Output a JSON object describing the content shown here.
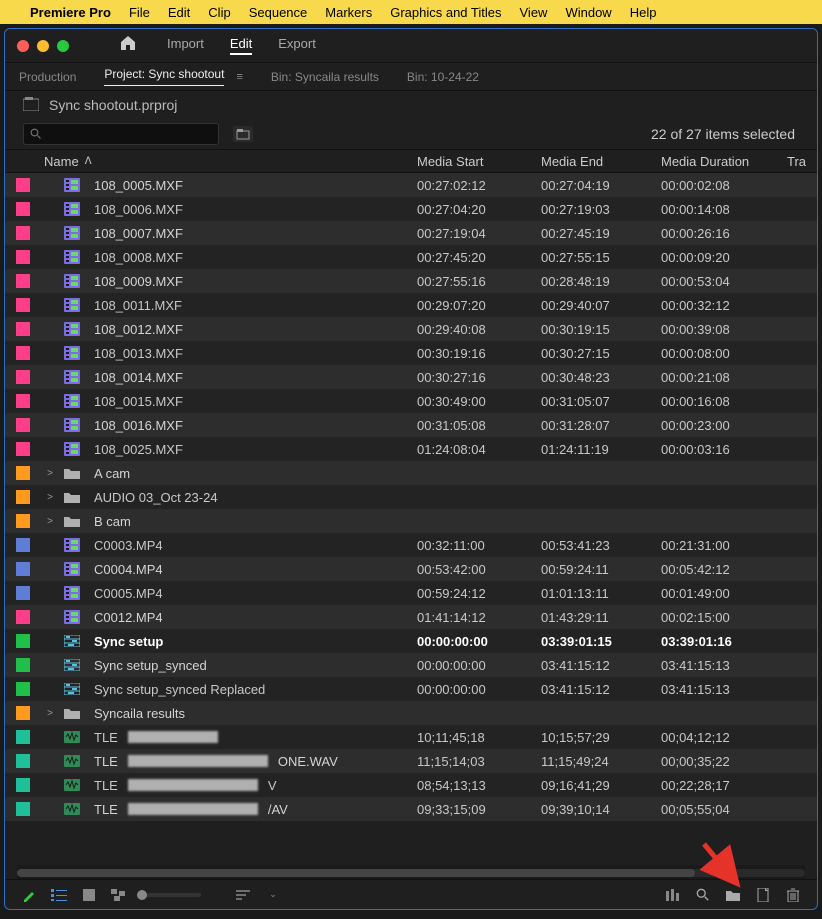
{
  "menubar": {
    "app": "Premiere Pro",
    "items": [
      "File",
      "Edit",
      "Clip",
      "Sequence",
      "Markers",
      "Graphics and Titles",
      "View",
      "Window",
      "Help"
    ]
  },
  "topnav": {
    "items": [
      "Import",
      "Edit",
      "Export"
    ],
    "active": 1
  },
  "panel_tabs": {
    "items": [
      "Production",
      "Project: Sync shootout",
      "Bin: Syncaila results",
      "Bin: 10-24-22"
    ],
    "active": 1
  },
  "project_name": "Sync shootout.prproj",
  "selection_text": "22 of 27 items selected",
  "columns": {
    "name": "Name",
    "start": "Media Start",
    "end": "Media End",
    "dur": "Media Duration",
    "last": "Tra"
  },
  "label_colors": {
    "pink": "#ff3e8a",
    "orange": "#ff9a1f",
    "blue": "#5e7dd6",
    "green": "#1fbf4a",
    "teal": "#1fbf9a"
  },
  "icon_colors": {
    "clip_video": "#7a6fe0",
    "clip_green": "#4caf50",
    "folder": "#b0b0b0",
    "seq": "#5bc0de",
    "audio": "#2e8b57"
  },
  "rows": [
    {
      "label": "pink",
      "icon": "clip",
      "name": "108_0005.MXF",
      "start": "00:27:02:12",
      "end": "00:27:04:19",
      "dur": "00:00:02:08"
    },
    {
      "label": "pink",
      "icon": "clip",
      "name": "108_0006.MXF",
      "start": "00:27:04:20",
      "end": "00:27:19:03",
      "dur": "00:00:14:08"
    },
    {
      "label": "pink",
      "icon": "clip",
      "name": "108_0007.MXF",
      "start": "00:27:19:04",
      "end": "00:27:45:19",
      "dur": "00:00:26:16"
    },
    {
      "label": "pink",
      "icon": "clip",
      "name": "108_0008.MXF",
      "start": "00:27:45:20",
      "end": "00:27:55:15",
      "dur": "00:00:09:20"
    },
    {
      "label": "pink",
      "icon": "clip",
      "name": "108_0009.MXF",
      "start": "00:27:55:16",
      "end": "00:28:48:19",
      "dur": "00:00:53:04"
    },
    {
      "label": "pink",
      "icon": "clip",
      "name": "108_0011.MXF",
      "start": "00:29:07:20",
      "end": "00:29:40:07",
      "dur": "00:00:32:12"
    },
    {
      "label": "pink",
      "icon": "clip",
      "name": "108_0012.MXF",
      "start": "00:29:40:08",
      "end": "00:30:19:15",
      "dur": "00:00:39:08"
    },
    {
      "label": "pink",
      "icon": "clip",
      "name": "108_0013.MXF",
      "start": "00:30:19:16",
      "end": "00:30:27:15",
      "dur": "00:00:08:00"
    },
    {
      "label": "pink",
      "icon": "clip",
      "name": "108_0014.MXF",
      "start": "00:30:27:16",
      "end": "00:30:48:23",
      "dur": "00:00:21:08"
    },
    {
      "label": "pink",
      "icon": "clip",
      "name": "108_0015.MXF",
      "start": "00:30:49:00",
      "end": "00:31:05:07",
      "dur": "00:00:16:08"
    },
    {
      "label": "pink",
      "icon": "clip",
      "name": "108_0016.MXF",
      "start": "00:31:05:08",
      "end": "00:31:28:07",
      "dur": "00:00:23:00"
    },
    {
      "label": "pink",
      "icon": "clip",
      "name": "108_0025.MXF",
      "start": "01:24:08:04",
      "end": "01:24:11:19",
      "dur": "00:00:03:16"
    },
    {
      "label": "orange",
      "icon": "folder",
      "expand": ">",
      "name": "A cam"
    },
    {
      "label": "orange",
      "icon": "folder",
      "expand": ">",
      "name": "AUDIO 03_Oct 23-24"
    },
    {
      "label": "orange",
      "icon": "folder",
      "expand": ">",
      "name": "B cam"
    },
    {
      "label": "blue",
      "icon": "clip",
      "name": "C0003.MP4",
      "start": "00:32:11:00",
      "end": "00:53:41:23",
      "dur": "00:21:31:00"
    },
    {
      "label": "blue",
      "icon": "clip",
      "name": "C0004.MP4",
      "start": "00:53:42:00",
      "end": "00:59:24:11",
      "dur": "00:05:42:12"
    },
    {
      "label": "blue",
      "icon": "clip",
      "name": "C0005.MP4",
      "start": "00:59:24:12",
      "end": "01:01:13:11",
      "dur": "00:01:49:00"
    },
    {
      "label": "pink",
      "icon": "clip",
      "name": "C0012.MP4",
      "start": "01:41:14:12",
      "end": "01:43:29:11",
      "dur": "00:02:15:00"
    },
    {
      "label": "green",
      "icon": "seq",
      "name": "Sync setup",
      "start": "00:00:00:00",
      "end": "03:39:01:15",
      "dur": "03:39:01:16",
      "bold": true
    },
    {
      "label": "green",
      "icon": "seq",
      "name": "Sync setup_synced",
      "start": "00:00:00:00",
      "end": "03:41:15:12",
      "dur": "03:41:15:13"
    },
    {
      "label": "green",
      "icon": "seq",
      "name": "Sync setup_synced Replaced",
      "start": "00:00:00:00",
      "end": "03:41:15:12",
      "dur": "03:41:15:13"
    },
    {
      "label": "orange",
      "icon": "folder",
      "expand": ">",
      "name": "Syncaila results"
    },
    {
      "label": "teal",
      "icon": "audio",
      "name": "TLE",
      "redacted": 90,
      "start": "10;11;45;18",
      "end": "10;15;57;29",
      "dur": "00;04;12;12"
    },
    {
      "label": "teal",
      "icon": "audio",
      "name": "TLE",
      "redacted": 140,
      "suffix": "ONE.WAV",
      "start": "11;15;14;03",
      "end": "11;15;49;24",
      "dur": "00;00;35;22"
    },
    {
      "label": "teal",
      "icon": "audio",
      "name": "TLE",
      "redacted": 130,
      "suffix": "V",
      "start": "08;54;13;13",
      "end": "09;16;41;29",
      "dur": "00;22;28;17"
    },
    {
      "label": "teal",
      "icon": "audio",
      "name": "TLE",
      "redacted": 130,
      "suffix": "/AV",
      "start": "09;33;15;09",
      "end": "09;39;10;14",
      "dur": "00;05;55;04"
    }
  ]
}
